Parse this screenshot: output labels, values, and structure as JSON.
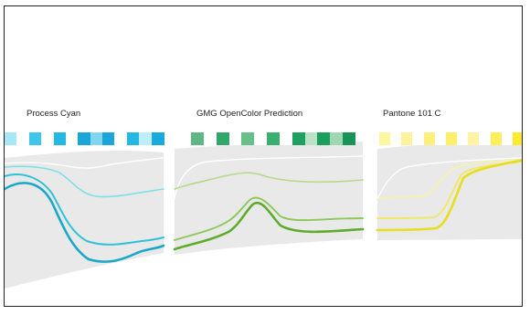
{
  "panels": [
    {
      "label": "Process Cyan",
      "swatches": [
        "#a8e7f5",
        "#ffffff",
        "#3fc6ea",
        "#ffffff",
        "#24b8e3",
        "#ffffff",
        "#1aa6d8",
        "#7fd7ef",
        "#1aa6d8",
        "#ffffff",
        "#24b8e3",
        "#bfeef8",
        "#19a9dc"
      ],
      "line_colors": [
        "#ffffff",
        "#7be0e8",
        "#32c2d6",
        "#1ba8c8"
      ]
    },
    {
      "label": "GMG OpenColor Prediction",
      "swatches": [
        "#5fb883",
        "#ffffff",
        "#2fa86a",
        "#ffffff",
        "#67c089",
        "#ffffff",
        "#3aaf6f",
        "#ffffff",
        "#20a060",
        "#b9e2c7",
        "#1b9f5c",
        "#9fd7b3",
        "#189556"
      ],
      "line_colors": [
        "#ffffff",
        "#b9d98a",
        "#8fc85a",
        "#5fac2c"
      ]
    },
    {
      "label": "Pantone 101 C",
      "swatches": [
        "#fff6a0",
        "#ffffff",
        "#fff29a",
        "#ffffff",
        "#fff07d",
        "#ffffff",
        "#fff06b",
        "#ffffff",
        "#fff3a5",
        "#ffffff",
        "#ffef5a",
        "#ffffff",
        "#ffea2e"
      ],
      "line_colors": [
        "#ffffff",
        "#f7f3a3",
        "#efe86a",
        "#e8de1e"
      ]
    }
  ]
}
